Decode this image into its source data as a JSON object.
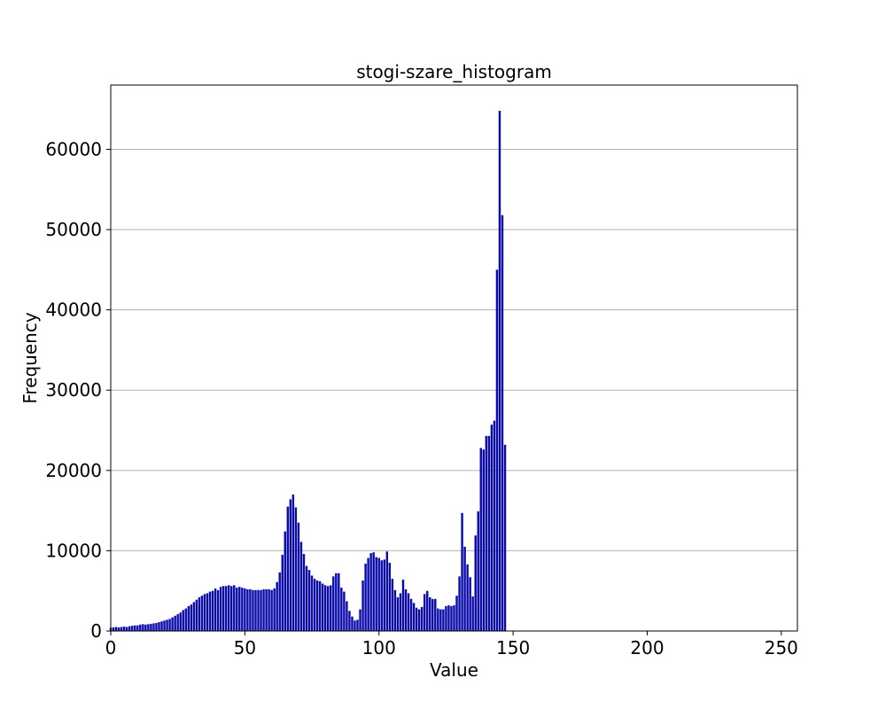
{
  "chart_data": {
    "type": "bar",
    "title": "stogi-szare_histogram",
    "xlabel": "Value",
    "ylabel": "Frequency",
    "xlim": [
      0,
      256
    ],
    "ylim": [
      0,
      68000
    ],
    "xticks": [
      0,
      50,
      100,
      150,
      200,
      250
    ],
    "yticks": [
      0,
      10000,
      20000,
      30000,
      40000,
      50000,
      60000
    ],
    "xtick_labels": [
      "0",
      "50",
      "100",
      "150",
      "200",
      "250"
    ],
    "ytick_labels": [
      "0",
      "10000",
      "20000",
      "30000",
      "40000",
      "50000",
      "60000"
    ],
    "grid": "horizontal",
    "legend": "none",
    "bar_color": "#0a0aaa",
    "x": [
      0,
      1,
      2,
      3,
      4,
      5,
      6,
      7,
      8,
      9,
      10,
      11,
      12,
      13,
      14,
      15,
      16,
      17,
      18,
      19,
      20,
      21,
      22,
      23,
      24,
      25,
      26,
      27,
      28,
      29,
      30,
      31,
      32,
      33,
      34,
      35,
      36,
      37,
      38,
      39,
      40,
      41,
      42,
      43,
      44,
      45,
      46,
      47,
      48,
      49,
      50,
      51,
      52,
      53,
      54,
      55,
      56,
      57,
      58,
      59,
      60,
      61,
      62,
      63,
      64,
      65,
      66,
      67,
      68,
      69,
      70,
      71,
      72,
      73,
      74,
      75,
      76,
      77,
      78,
      79,
      80,
      81,
      82,
      83,
      84,
      85,
      86,
      87,
      88,
      89,
      90,
      91,
      92,
      93,
      94,
      95,
      96,
      97,
      98,
      99,
      100,
      101,
      102,
      103,
      104,
      105,
      106,
      107,
      108,
      109,
      110,
      111,
      112,
      113,
      114,
      115,
      116,
      117,
      118,
      119,
      120,
      121,
      122,
      123,
      124,
      125,
      126,
      127,
      128,
      129,
      130,
      131,
      132,
      133,
      134,
      135,
      136,
      137,
      138,
      139,
      140,
      141,
      142,
      143,
      144,
      145,
      146,
      147
    ],
    "values": [
      400,
      450,
      500,
      450,
      500,
      550,
      500,
      600,
      650,
      700,
      700,
      800,
      850,
      800,
      850,
      900,
      950,
      1000,
      1100,
      1200,
      1300,
      1400,
      1500,
      1700,
      1900,
      2100,
      2300,
      2600,
      2800,
      3100,
      3300,
      3600,
      3900,
      4200,
      4400,
      4600,
      4700,
      4900,
      5000,
      5300,
      5100,
      5500,
      5600,
      5600,
      5700,
      5600,
      5700,
      5400,
      5500,
      5400,
      5300,
      5200,
      5200,
      5100,
      5100,
      5100,
      5100,
      5200,
      5200,
      5200,
      5100,
      5300,
      6100,
      7300,
      9500,
      12400,
      15500,
      16400,
      17000,
      15400,
      13500,
      11100,
      9600,
      8100,
      7600,
      6900,
      6500,
      6300,
      6200,
      5900,
      5700,
      5600,
      5700,
      6800,
      7200,
      7200,
      5400,
      4900,
      3700,
      2500,
      1800,
      1300,
      1400,
      2700,
      6300,
      8400,
      9100,
      9700,
      9800,
      9200,
      9100,
      8800,
      8900,
      9900,
      8500,
      6500,
      5100,
      4200,
      4700,
      6400,
      5200,
      4700,
      4000,
      3500,
      2900,
      2700,
      3000,
      4600,
      5000,
      4200,
      4000,
      4000,
      2800,
      2700,
      2700,
      3100,
      3200,
      3100,
      3200,
      4400,
      6800,
      14700,
      10500,
      8300,
      6700,
      4300,
      11900,
      14900,
      22800,
      22600,
      24300,
      24300,
      25700,
      26200,
      45000,
      64800,
      51800,
      23200
    ]
  }
}
